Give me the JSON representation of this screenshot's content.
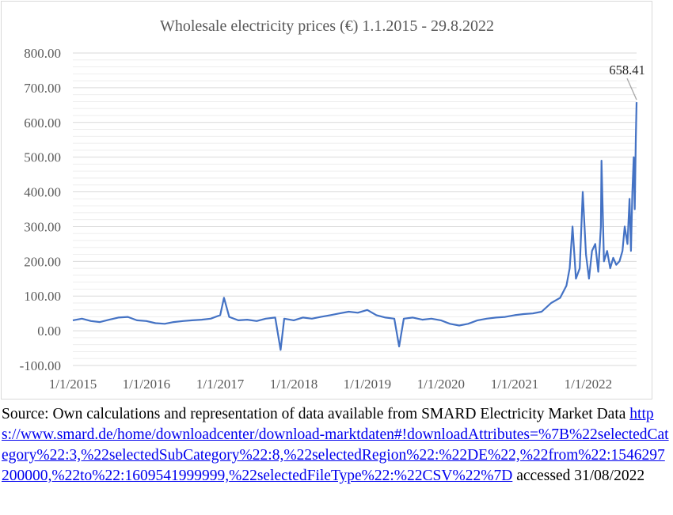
{
  "chart_data": {
    "type": "line",
    "title": "Wholesale electricity prices (€) 1.1.2015 - 29.8.2022",
    "xlabel": "",
    "ylabel": "",
    "ylim": [
      -100,
      800
    ],
    "y_ticks": [
      -100,
      0,
      100,
      200,
      300,
      400,
      500,
      600,
      700,
      800
    ],
    "y_tick_labels": [
      "-100.00",
      "0.00",
      "100.00",
      "200.00",
      "300.00",
      "400.00",
      "500.00",
      "600.00",
      "700.00",
      "800.00"
    ],
    "x_ticks": [
      "2015-01-01",
      "2016-01-01",
      "2017-01-01",
      "2018-01-01",
      "2019-01-01",
      "2020-01-01",
      "2021-01-01",
      "2022-01-01"
    ],
    "x_tick_labels": [
      "1/1/2015",
      "1/1/2016",
      "1/1/2017",
      "1/1/2018",
      "1/1/2019",
      "1/1/2020",
      "1/1/2021",
      "1/1/2022"
    ],
    "xlim": [
      "2015-01-01",
      "2022-08-29"
    ],
    "grid": "horizontal",
    "legend": "none",
    "color": "#4472c4",
    "annotation": {
      "text": "658.41",
      "x": "2022-08-29",
      "y": 658.41
    },
    "series": [
      {
        "x": [
          "2015-01-01",
          "2015-02-15",
          "2015-04-01",
          "2015-05-15",
          "2015-07-01",
          "2015-08-15",
          "2015-10-01",
          "2015-11-15",
          "2016-01-01",
          "2016-02-15",
          "2016-04-01",
          "2016-05-15",
          "2016-07-01",
          "2016-08-15",
          "2016-10-01",
          "2016-11-15",
          "2017-01-01",
          "2017-01-20",
          "2017-02-15",
          "2017-04-01",
          "2017-05-15",
          "2017-07-01",
          "2017-08-15",
          "2017-10-01",
          "2017-10-28",
          "2017-11-15",
          "2018-01-01",
          "2018-02-15",
          "2018-04-01",
          "2018-05-15",
          "2018-07-01",
          "2018-08-15",
          "2018-10-01",
          "2018-11-15",
          "2019-01-01",
          "2019-02-15",
          "2019-04-01",
          "2019-05-15",
          "2019-06-08",
          "2019-07-01",
          "2019-08-15",
          "2019-10-01",
          "2019-11-15",
          "2020-01-01",
          "2020-02-15",
          "2020-04-01",
          "2020-05-15",
          "2020-07-01",
          "2020-08-15",
          "2020-10-01",
          "2020-11-15",
          "2021-01-01",
          "2021-02-15",
          "2021-04-01",
          "2021-05-15",
          "2021-07-01",
          "2021-08-15",
          "2021-09-15",
          "2021-10-01",
          "2021-10-15",
          "2021-11-01",
          "2021-11-20",
          "2021-12-05",
          "2021-12-21",
          "2022-01-05",
          "2022-01-20",
          "2022-02-05",
          "2022-02-20",
          "2022-03-05",
          "2022-03-08",
          "2022-03-20",
          "2022-04-05",
          "2022-04-20",
          "2022-05-05",
          "2022-05-20",
          "2022-06-05",
          "2022-06-20",
          "2022-07-01",
          "2022-07-15",
          "2022-07-25",
          "2022-08-01",
          "2022-08-08",
          "2022-08-15",
          "2022-08-20",
          "2022-08-25",
          "2022-08-29"
        ],
        "y": [
          30,
          35,
          28,
          25,
          32,
          38,
          40,
          30,
          28,
          22,
          20,
          25,
          28,
          30,
          32,
          35,
          45,
          95,
          40,
          30,
          32,
          28,
          35,
          38,
          -55,
          35,
          30,
          38,
          35,
          40,
          45,
          50,
          55,
          52,
          60,
          45,
          38,
          35,
          -45,
          35,
          38,
          32,
          35,
          30,
          20,
          15,
          20,
          30,
          35,
          38,
          40,
          45,
          48,
          50,
          55,
          80,
          95,
          130,
          180,
          300,
          150,
          180,
          400,
          220,
          150,
          230,
          250,
          170,
          300,
          490,
          200,
          230,
          180,
          210,
          190,
          200,
          230,
          300,
          250,
          380,
          230,
          400,
          500,
          350,
          550,
          658.41
        ]
      }
    ]
  },
  "caption": {
    "prefix": "Source: Own calculations and representation of data available from SMARD Electricity Market Data ",
    "link": "https://www.smard.de/home/downloadcenter/download-marktdaten#!downloadAttributes=%7B%22selectedCategory%22:3,%22selectedSubCategory%22:8,%22selectedRegion%22:%22DE%22,%22from%22:1546297200000,%22to%22:1609541999999,%22selectedFileType%22:%22CSV%22%7D",
    "suffix": " accessed 31/08/2022"
  }
}
